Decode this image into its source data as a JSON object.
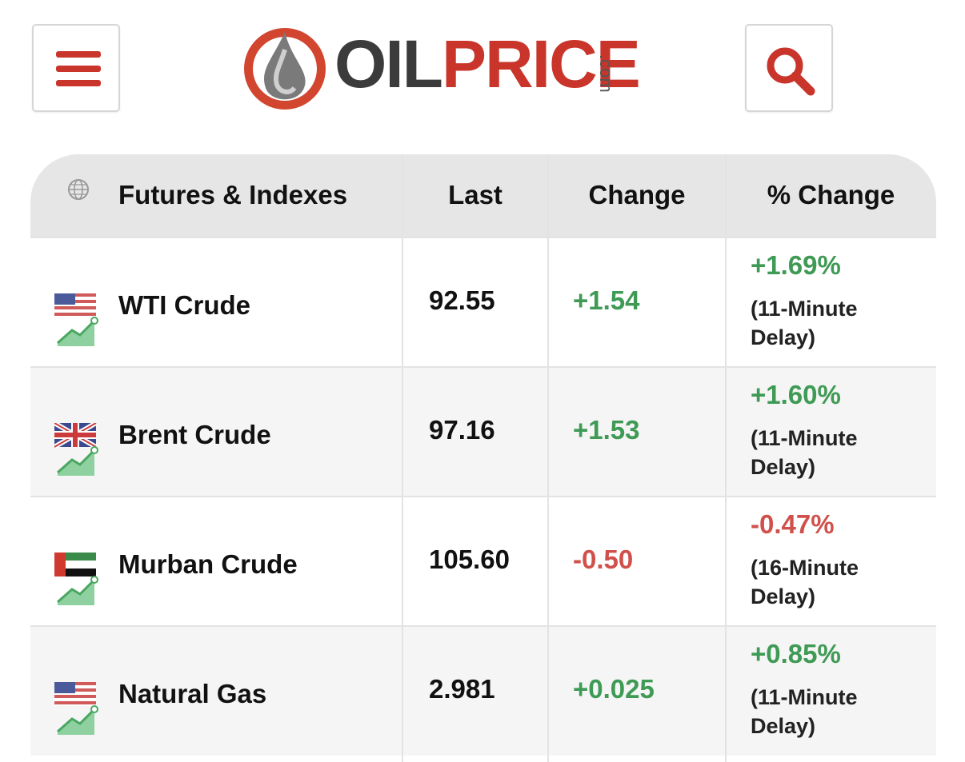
{
  "header": {
    "logo": {
      "oil": "OIL",
      "price": "PRICE",
      "domain": ".com"
    }
  },
  "table": {
    "columns": [
      "Futures & Indexes",
      "Last",
      "Change",
      "% Change"
    ],
    "rows": [
      {
        "name": "WTI Crude",
        "last": "92.55",
        "change": "+1.54",
        "percent_change": "+1.69%",
        "delay": "(11-Minute Delay)"
      },
      {
        "name": "Brent Crude",
        "last": "97.16",
        "change": "+1.53",
        "percent_change": "+1.60%",
        "delay": "(11-Minute Delay)"
      },
      {
        "name": "Murban Crude",
        "last": "105.60",
        "change": "-0.50",
        "percent_change": "-0.47%",
        "delay": "(16-Minute Delay)"
      },
      {
        "name": "Natural Gas",
        "last": "2.981",
        "change": "+0.025",
        "percent_change": "+0.85%",
        "delay": "(11-Minute Delay)"
      }
    ]
  }
}
